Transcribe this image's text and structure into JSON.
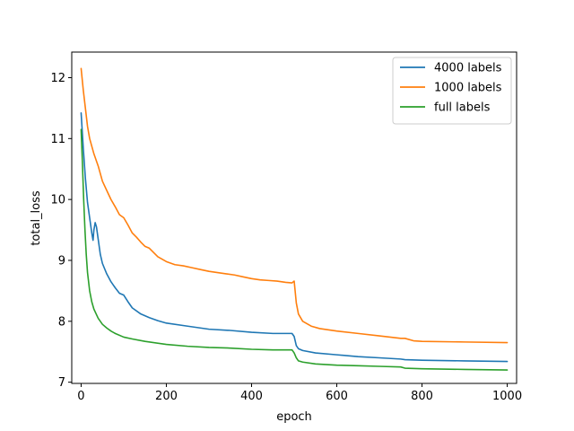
{
  "chart_data": {
    "type": "line",
    "title": "",
    "xlabel": "epoch",
    "ylabel": "total_loss",
    "xlim": [
      -22,
      1022
    ],
    "ylim": [
      6.98,
      12.42
    ],
    "xticks": [
      0,
      200,
      400,
      600,
      800,
      1000
    ],
    "yticks": [
      7,
      8,
      9,
      10,
      11,
      12
    ],
    "grid": false,
    "legend_position": "top-right",
    "series": [
      {
        "name": "4000 labels",
        "color": "#1f77b4",
        "points": [
          [
            0,
            11.42
          ],
          [
            5,
            10.85
          ],
          [
            10,
            10.35
          ],
          [
            15,
            9.95
          ],
          [
            20,
            9.7
          ],
          [
            25,
            9.45
          ],
          [
            28,
            9.33
          ],
          [
            30,
            9.5
          ],
          [
            33,
            9.62
          ],
          [
            36,
            9.55
          ],
          [
            40,
            9.35
          ],
          [
            45,
            9.1
          ],
          [
            50,
            8.95
          ],
          [
            60,
            8.78
          ],
          [
            70,
            8.65
          ],
          [
            80,
            8.55
          ],
          [
            90,
            8.46
          ],
          [
            100,
            8.43
          ],
          [
            110,
            8.32
          ],
          [
            120,
            8.22
          ],
          [
            140,
            8.12
          ],
          [
            160,
            8.06
          ],
          [
            180,
            8.01
          ],
          [
            200,
            7.97
          ],
          [
            250,
            7.92
          ],
          [
            300,
            7.87
          ],
          [
            350,
            7.85
          ],
          [
            400,
            7.82
          ],
          [
            450,
            7.8
          ],
          [
            495,
            7.8
          ],
          [
            500,
            7.75
          ],
          [
            505,
            7.6
          ],
          [
            510,
            7.55
          ],
          [
            520,
            7.52
          ],
          [
            550,
            7.48
          ],
          [
            600,
            7.45
          ],
          [
            650,
            7.42
          ],
          [
            700,
            7.4
          ],
          [
            750,
            7.38
          ],
          [
            760,
            7.37
          ],
          [
            800,
            7.36
          ],
          [
            900,
            7.35
          ],
          [
            1000,
            7.34
          ]
        ]
      },
      {
        "name": "1000 labels",
        "color": "#ff7f0e",
        "points": [
          [
            0,
            12.15
          ],
          [
            5,
            11.8
          ],
          [
            10,
            11.5
          ],
          [
            15,
            11.2
          ],
          [
            20,
            11.0
          ],
          [
            30,
            10.75
          ],
          [
            40,
            10.55
          ],
          [
            50,
            10.3
          ],
          [
            60,
            10.15
          ],
          [
            70,
            10.0
          ],
          [
            80,
            9.88
          ],
          [
            90,
            9.75
          ],
          [
            100,
            9.7
          ],
          [
            110,
            9.58
          ],
          [
            120,
            9.45
          ],
          [
            130,
            9.38
          ],
          [
            140,
            9.3
          ],
          [
            150,
            9.23
          ],
          [
            160,
            9.2
          ],
          [
            170,
            9.13
          ],
          [
            180,
            9.06
          ],
          [
            200,
            8.98
          ],
          [
            220,
            8.93
          ],
          [
            240,
            8.91
          ],
          [
            260,
            8.88
          ],
          [
            280,
            8.85
          ],
          [
            300,
            8.82
          ],
          [
            320,
            8.8
          ],
          [
            340,
            8.78
          ],
          [
            360,
            8.76
          ],
          [
            380,
            8.73
          ],
          [
            400,
            8.7
          ],
          [
            420,
            8.68
          ],
          [
            440,
            8.67
          ],
          [
            460,
            8.66
          ],
          [
            480,
            8.64
          ],
          [
            495,
            8.63
          ],
          [
            500,
            8.66
          ],
          [
            505,
            8.3
          ],
          [
            510,
            8.12
          ],
          [
            520,
            8.0
          ],
          [
            540,
            7.92
          ],
          [
            560,
            7.88
          ],
          [
            600,
            7.84
          ],
          [
            650,
            7.8
          ],
          [
            700,
            7.76
          ],
          [
            750,
            7.72
          ],
          [
            760,
            7.72
          ],
          [
            780,
            7.68
          ],
          [
            800,
            7.67
          ],
          [
            900,
            7.66
          ],
          [
            1000,
            7.65
          ]
        ]
      },
      {
        "name": "full labels",
        "color": "#2ca02c",
        "points": [
          [
            0,
            11.15
          ],
          [
            3,
            10.6
          ],
          [
            6,
            10.0
          ],
          [
            9,
            9.5
          ],
          [
            12,
            9.1
          ],
          [
            15,
            8.8
          ],
          [
            20,
            8.5
          ],
          [
            25,
            8.32
          ],
          [
            30,
            8.2
          ],
          [
            40,
            8.05
          ],
          [
            50,
            7.95
          ],
          [
            60,
            7.89
          ],
          [
            70,
            7.84
          ],
          [
            80,
            7.8
          ],
          [
            100,
            7.74
          ],
          [
            120,
            7.71
          ],
          [
            150,
            7.67
          ],
          [
            200,
            7.62
          ],
          [
            250,
            7.59
          ],
          [
            300,
            7.57
          ],
          [
            350,
            7.56
          ],
          [
            400,
            7.54
          ],
          [
            450,
            7.53
          ],
          [
            495,
            7.53
          ],
          [
            500,
            7.48
          ],
          [
            505,
            7.4
          ],
          [
            510,
            7.35
          ],
          [
            520,
            7.33
          ],
          [
            550,
            7.3
          ],
          [
            600,
            7.28
          ],
          [
            650,
            7.27
          ],
          [
            700,
            7.26
          ],
          [
            750,
            7.25
          ],
          [
            760,
            7.23
          ],
          [
            800,
            7.22
          ],
          [
            900,
            7.21
          ],
          [
            1000,
            7.2
          ]
        ]
      }
    ]
  }
}
